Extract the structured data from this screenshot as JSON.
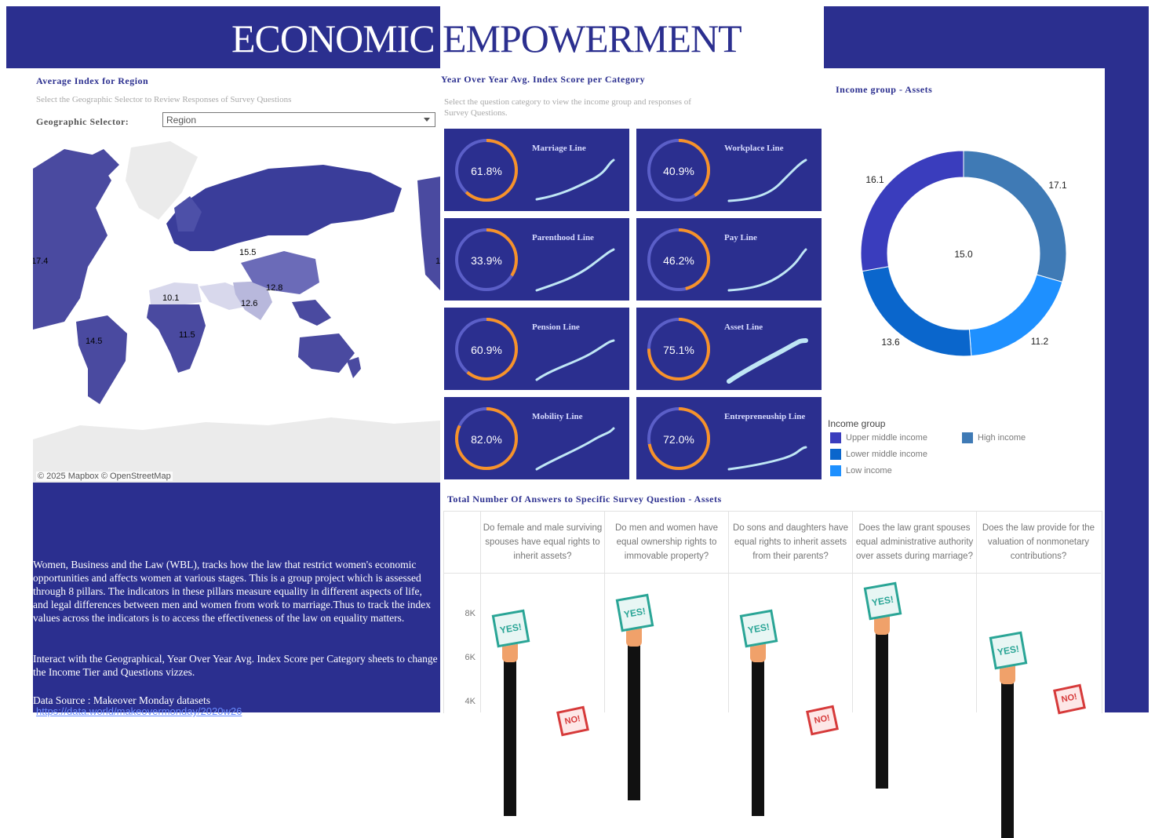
{
  "header": {
    "title_left": "ECONOMIC",
    "title_right": "EMPOWERMENT"
  },
  "map_section": {
    "title": "Average Index for Region",
    "subtitle": "Select the Geographic Selector to Review Responses of Survey Questions",
    "selector_label": "Geographic Selector:",
    "selector_value": "Region",
    "labels": [
      "17.4",
      "15.5",
      "12.8",
      "10.1",
      "12.6",
      "11.5",
      "14.5",
      "1"
    ],
    "attribution": "© 2025 Mapbox  © OpenStreetMap"
  },
  "kpi_section": {
    "title": "Year Over Year Avg. Index Score per Category",
    "subtitle": "Select the question category to view the income group and responses of Survey Questions.",
    "cards": [
      {
        "label": "Marriage Line",
        "value": "61.8%",
        "pct": 61.8
      },
      {
        "label": "Workplace Line",
        "value": "40.9%",
        "pct": 40.9
      },
      {
        "label": "Parenthood Line",
        "value": "33.9%",
        "pct": 33.9
      },
      {
        "label": "Pay Line",
        "value": "46.2%",
        "pct": 46.2
      },
      {
        "label": "Pension Line",
        "value": "60.9%",
        "pct": 60.9
      },
      {
        "label": "Asset Line",
        "value": "75.1%",
        "pct": 75.1
      },
      {
        "label": "Mobility Line",
        "value": "82.0%",
        "pct": 82.0
      },
      {
        "label": "Entrepreneuship Line",
        "value": "72.0%",
        "pct": 72.0
      }
    ]
  },
  "income_section": {
    "title": "Income group  -  Assets",
    "center_value": "15.0",
    "slices": [
      {
        "label": "17.1",
        "value": 17.1,
        "color": "#3f7ab5"
      },
      {
        "label": "11.2",
        "value": 11.2,
        "color": "#1e90ff"
      },
      {
        "label": "13.6",
        "value": 13.6,
        "color": "#0a66cc"
      },
      {
        "label": "16.1",
        "value": 16.1,
        "color": "#3a3dbd"
      }
    ],
    "legend_title": "Income group",
    "legend": [
      {
        "label": "Upper middle income",
        "color": "#3a3dbd"
      },
      {
        "label": "High income",
        "color": "#3f7ab5"
      },
      {
        "label": "Lower middle income",
        "color": "#0a66cc"
      },
      {
        "label": "Low income",
        "color": "#1e90ff"
      }
    ]
  },
  "survey_section": {
    "title": "Total Number Of Answers to Specific  Survey Question -  Assets",
    "questions": [
      "Do female and male surviving spouses have equal rights to inherit assets?",
      "Do men and women have equal ownership rights to immovable property?",
      "Do sons and daughters have equal rights to inherit assets from their parents?",
      "Does the law grant spouses equal administrative authority over assets during marriage?",
      "Does the law provide for the valuation of nonmonetary contributions?"
    ],
    "y_ticks": [
      "8K",
      "6K",
      "4K"
    ],
    "sign_yes": "YES!",
    "sign_no": "NO!"
  },
  "description": {
    "para1": "Women, Business and the Law (WBL), tracks how the law that restrict women's economic opportunities and affects women at various stages. This is a group project which is assessed through 8 pillars. The indicators in these pillars measure equality in different aspects of life, and legal differences between men and women from work to marriage.Thus to track the index values across the indicators is to access the effectiveness of the law on equality matters.",
    "para2": "Interact with the Geographical, Year Over Year Avg. Index Score per Category sheets to change the Income Tier and Questions vizzes.",
    "source": "Data Source : Makeover Monday datasets",
    "link": "https://data.world/makeovermonday/2020w26"
  }
}
